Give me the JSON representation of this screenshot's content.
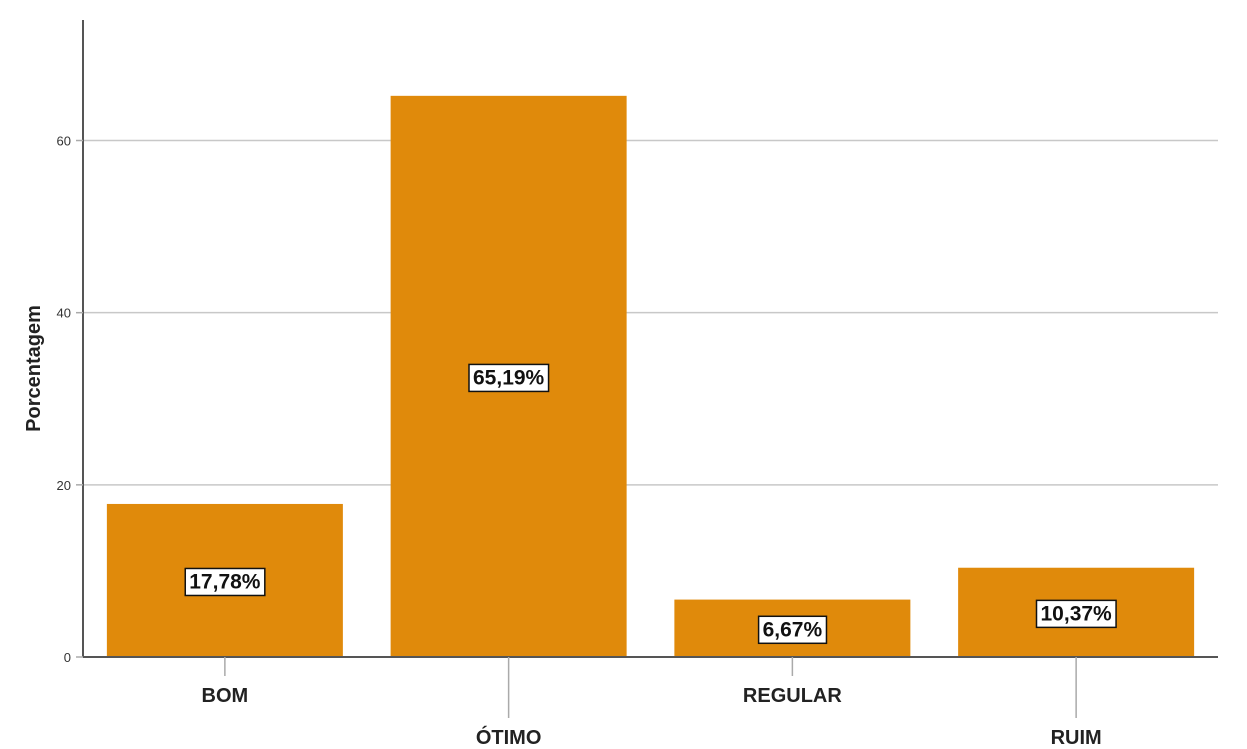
{
  "chart_data": {
    "type": "bar",
    "title": "",
    "xlabel": "",
    "ylabel": "Porcentagem",
    "categories": [
      "BOM",
      "ÓTIMO",
      "REGULAR",
      "RUIM"
    ],
    "values": [
      17.78,
      65.19,
      6.67,
      10.37
    ],
    "data_labels": [
      "17,78%",
      "65,19%",
      "6,67%",
      "10,37%"
    ],
    "yticks": [
      "0",
      "20",
      "40",
      "60"
    ],
    "ylim": [
      0,
      74
    ],
    "grid": true,
    "legend": "none",
    "bar_color": "#e08a0b"
  }
}
